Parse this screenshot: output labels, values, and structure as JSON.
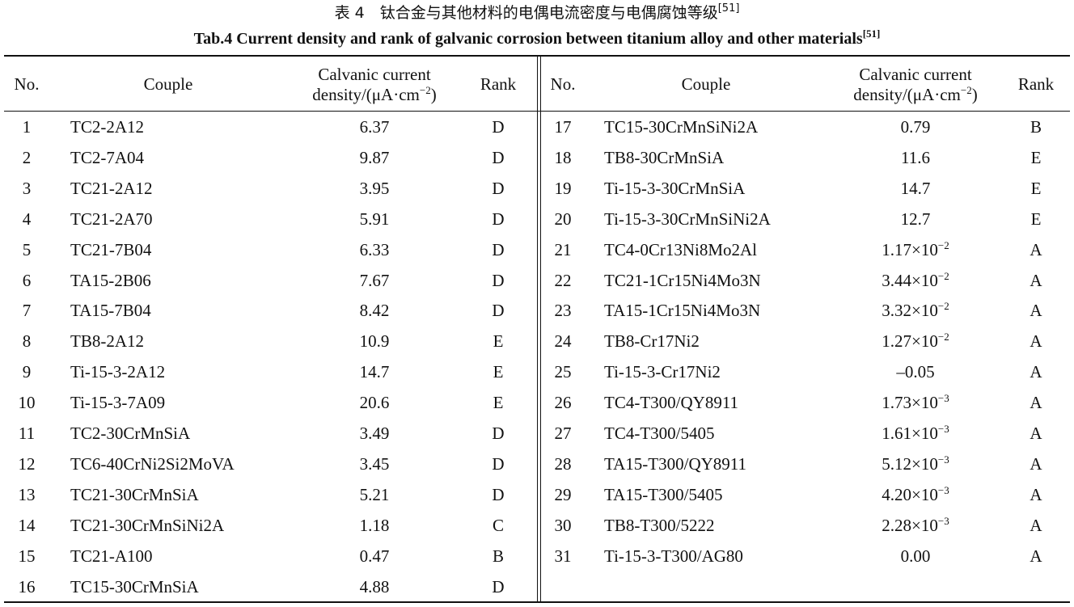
{
  "header": {
    "title_cn": {
      "text": "表 4　钛合金与其他材料的电偶电流密度与电偶腐蚀等级",
      "ref": "[51]"
    },
    "title_en": {
      "text": "Tab.4 Current density and rank of galvanic corrosion between titanium alloy and other materials",
      "ref": "[51]"
    }
  },
  "table": {
    "columns": {
      "no": "No.",
      "couple": "Couple",
      "density": {
        "line1": "Calvanic current",
        "pre": "density/(μA·cm",
        "exp": "−2",
        "post": ")"
      },
      "rank": "Rank"
    },
    "left_rows": [
      [
        "1",
        "TC2-2A12",
        "6.37",
        "D"
      ],
      [
        "2",
        "TC2-7A04",
        "9.87",
        "D"
      ],
      [
        "3",
        "TC21-2A12",
        "3.95",
        "D"
      ],
      [
        "4",
        "TC21-2A70",
        "5.91",
        "D"
      ],
      [
        "5",
        "TC21-7B04",
        "6.33",
        "D"
      ],
      [
        "6",
        "TA15-2B06",
        "7.67",
        "D"
      ],
      [
        "7",
        "TA15-7B04",
        "8.42",
        "D"
      ],
      [
        "8",
        "TB8-2A12",
        "10.9",
        "E"
      ],
      [
        "9",
        "Ti-15-3-2A12",
        "14.7",
        "E"
      ],
      [
        "10",
        "Ti-15-3-7A09",
        "20.6",
        "E"
      ],
      [
        "11",
        "TC2-30CrMnSiA",
        "3.49",
        "D"
      ],
      [
        "12",
        "TC6-40CrNi2Si2MoVA",
        "3.45",
        "D"
      ],
      [
        "13",
        "TC21-30CrMnSiA",
        "5.21",
        "D"
      ],
      [
        "14",
        "TC21-30CrMnSiNi2A",
        "1.18",
        "C"
      ],
      [
        "15",
        "TC21-A100",
        "0.47",
        "B"
      ],
      [
        "16",
        "TC15-30CrMnSiA",
        "4.88",
        "D"
      ]
    ],
    "right_rows": [
      [
        "17",
        "TC15-30CrMnSiNi2A",
        "0.79",
        "B"
      ],
      [
        "18",
        "TB8-30CrMnSiA",
        "11.6",
        "E"
      ],
      [
        "19",
        "Ti-15-3-30CrMnSiA",
        "14.7",
        "E"
      ],
      [
        "20",
        "Ti-15-3-30CrMnSiNi2A",
        "12.7",
        "E"
      ],
      [
        "21",
        "TC4-0Cr13Ni8Mo2Al",
        {
          "base": "1.17×10",
          "exp": "−2"
        },
        "A"
      ],
      [
        "22",
        "TC21-1Cr15Ni4Mo3N",
        {
          "base": "3.44×10",
          "exp": "−2"
        },
        "A"
      ],
      [
        "23",
        "TA15-1Cr15Ni4Mo3N",
        {
          "base": "3.32×10",
          "exp": "−2"
        },
        "A"
      ],
      [
        "24",
        "TB8-Cr17Ni2",
        {
          "base": "1.27×10",
          "exp": "−2"
        },
        "A"
      ],
      [
        "25",
        "Ti-15-3-Cr17Ni2",
        "–0.05",
        "A"
      ],
      [
        "26",
        "TC4-T300/QY8911",
        {
          "base": "1.73×10",
          "exp": "−3"
        },
        "A"
      ],
      [
        "27",
        "TC4-T300/5405",
        {
          "base": "1.61×10",
          "exp": "−3"
        },
        "A"
      ],
      [
        "28",
        "TA15-T300/QY8911",
        {
          "base": "5.12×10",
          "exp": "−3"
        },
        "A"
      ],
      [
        "29",
        "TA15-T300/5405",
        {
          "base": "4.20×10",
          "exp": "−3"
        },
        "A"
      ],
      [
        "30",
        "TB8-T300/5222",
        {
          "base": "2.28×10",
          "exp": "−3"
        },
        "A"
      ],
      [
        "31",
        "Ti-15-3-T300/AG80",
        "0.00",
        "A"
      ]
    ]
  }
}
